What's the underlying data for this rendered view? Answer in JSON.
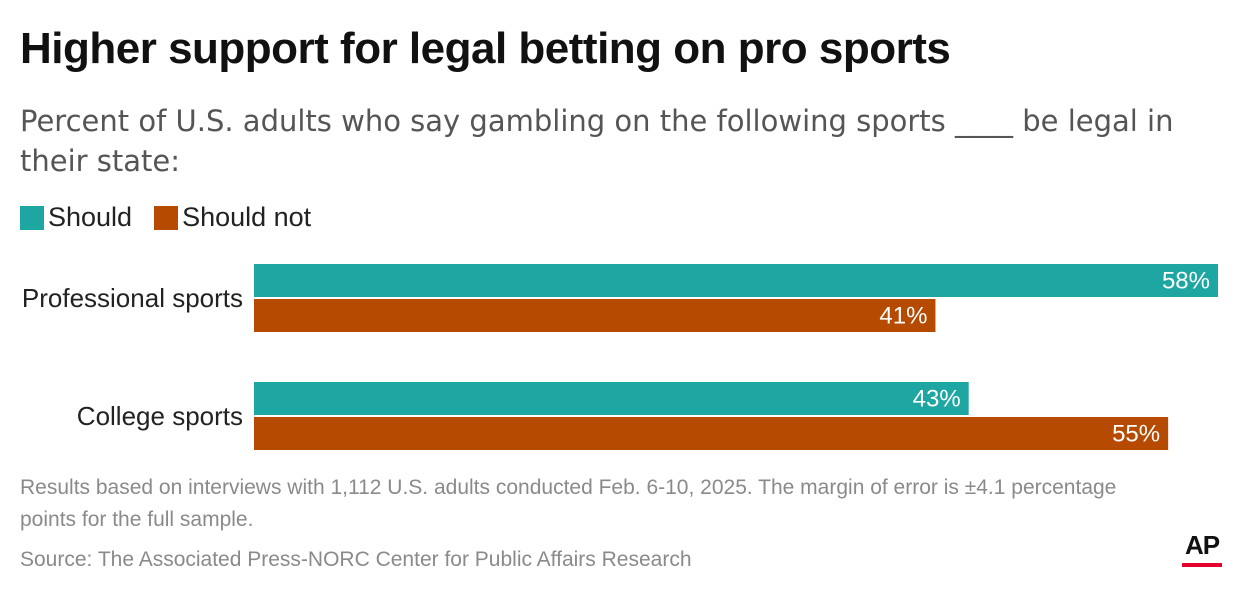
{
  "header": {
    "title": "Higher support for legal betting on pro sports",
    "subtitle": "Percent of U.S. adults who say gambling on the following sports ____ be legal in their state:"
  },
  "legend": [
    {
      "label": "Should",
      "color": "#1ea6a2"
    },
    {
      "label": "Should not",
      "color": "#b54a00"
    }
  ],
  "chart_data": {
    "type": "bar",
    "orientation": "horizontal",
    "categories": [
      "Professional sports",
      "College sports"
    ],
    "series": [
      {
        "name": "Should",
        "values": [
          58,
          43
        ],
        "color": "#1ea6a2"
      },
      {
        "name": "Should not",
        "values": [
          41,
          55
        ],
        "color": "#b54a00"
      }
    ],
    "value_suffix": "%",
    "xlim": [
      0,
      58
    ],
    "grid": false
  },
  "footer": {
    "note": "Results based on interviews with 1,112 U.S. adults conducted Feb. 6-10, 2025. The margin of error is ±4.1 percentage points for the full sample.",
    "source": "Source: The Associated Press-NORC Center for Public Affairs Research",
    "logo": "AP"
  }
}
